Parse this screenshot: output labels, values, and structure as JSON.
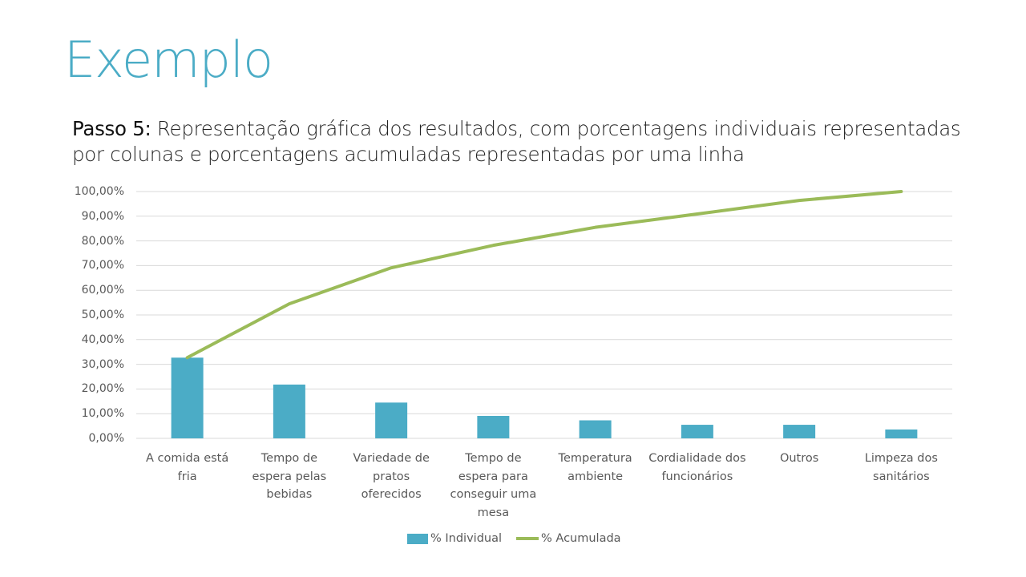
{
  "slide": {
    "title": "Exemplo",
    "subtitle_bold": "Passo 5:",
    "subtitle_rest": " Representação gráfica dos resultados, com porcentagens individuais representadas por colunas e porcentagens acumuladas representadas por uma linha"
  },
  "colors": {
    "title": "#4bacc6",
    "bar": "#4bacc6",
    "line": "#9bbb59",
    "grid": "#d9d9d9",
    "axis_text": "#595959"
  },
  "chart_data": {
    "type": "bar",
    "title": "",
    "xlabel": "",
    "ylabel": "",
    "ylim": [
      0,
      100
    ],
    "y_ticks": [
      "0,00%",
      "10,00%",
      "20,00%",
      "30,00%",
      "40,00%",
      "50,00%",
      "60,00%",
      "70,00%",
      "80,00%",
      "90,00%",
      "100,00%"
    ],
    "grid": true,
    "legend_position": "bottom",
    "categories": [
      "A comida está fria",
      "Tempo de espera pelas bebidas",
      "Variedade de pratos oferecidos",
      "Tempo de espera para conseguir uma mesa",
      "Temperatura ambiente",
      "Cordialidade dos funcionários",
      "Outros",
      "Limpeza dos sanitários"
    ],
    "category_lines": [
      [
        "A comida está",
        "fria"
      ],
      [
        "Tempo de",
        "espera pelas",
        "bebidas"
      ],
      [
        "Variedade de",
        "pratos",
        "oferecidos"
      ],
      [
        "Tempo de",
        "espera para",
        "conseguir uma",
        "mesa"
      ],
      [
        "Temperatura",
        "ambiente"
      ],
      [
        "Cordialidade dos",
        "funcionários"
      ],
      [
        "Outros"
      ],
      [
        "Limpeza dos",
        "sanitários"
      ]
    ],
    "series": [
      {
        "name": "% Individual",
        "type": "bar",
        "values": [
          32.7,
          21.8,
          14.5,
          9.1,
          7.3,
          5.5,
          5.5,
          3.6
        ]
      },
      {
        "name": "% Acumulada",
        "type": "line",
        "values": [
          32.7,
          54.5,
          69.1,
          78.2,
          85.5,
          90.9,
          96.4,
          100.0
        ]
      }
    ]
  },
  "legend": {
    "items": [
      {
        "label": "% Individual"
      },
      {
        "label": "% Acumulada"
      }
    ]
  }
}
